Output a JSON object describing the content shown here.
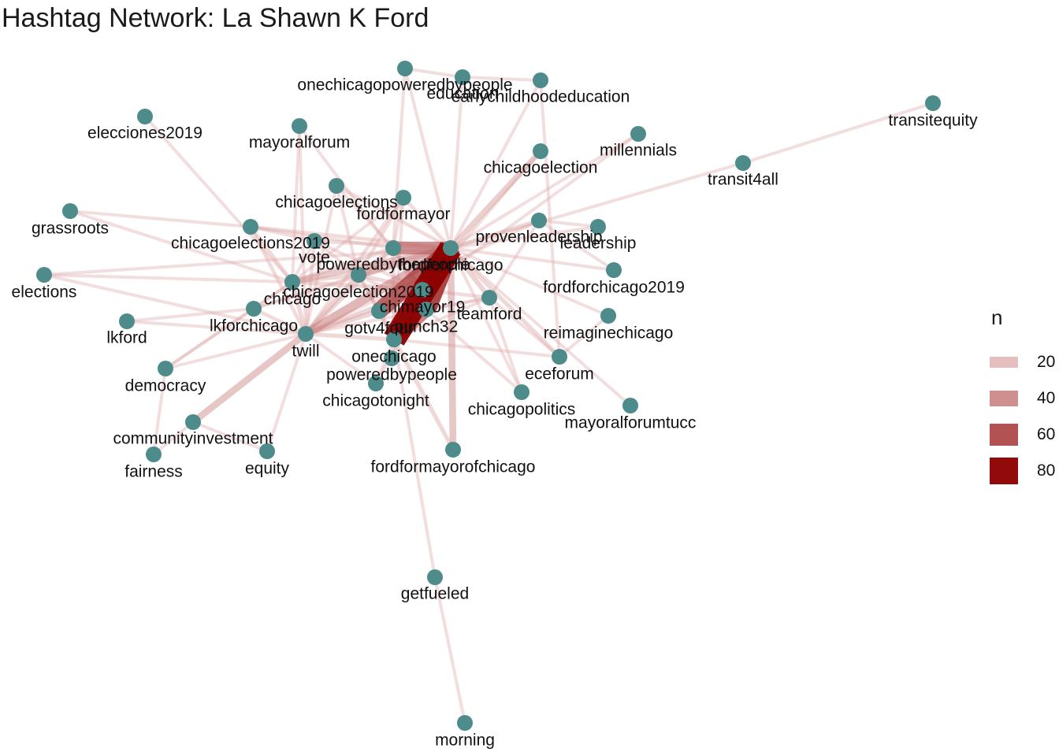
{
  "title": "Hashtag Network: La Shawn K Ford",
  "colors": {
    "node": "#4e8b8b",
    "edge": "#8b0000",
    "edge_light": "#e3b5b5"
  },
  "legend": {
    "title": "n",
    "items": [
      {
        "label": "20",
        "value": 20
      },
      {
        "label": "40",
        "value": 40
      },
      {
        "label": "60",
        "value": 60
      },
      {
        "label": "80",
        "value": 80
      }
    ]
  },
  "nodes": [
    {
      "id": "onechicagopoweredbypeople",
      "label": "onechicagopoweredbypeople"
    },
    {
      "id": "education",
      "label": "education"
    },
    {
      "id": "earlychildhoodeducation",
      "label": "earlychildhoodeducation"
    },
    {
      "id": "transitequity",
      "label": "transitequity"
    },
    {
      "id": "elecciones2019",
      "label": "elecciones2019"
    },
    {
      "id": "mayoralforum",
      "label": "mayoralforum"
    },
    {
      "id": "millennials",
      "label": "millennials"
    },
    {
      "id": "chicagoelection",
      "label": "chicagoelection"
    },
    {
      "id": "transit4all",
      "label": "transit4all"
    },
    {
      "id": "grassroots",
      "label": "grassroots"
    },
    {
      "id": "chicagoelections",
      "label": "chicagoelections"
    },
    {
      "id": "fordformayor",
      "label": "fordformayor"
    },
    {
      "id": "chicagoelections2019",
      "label": "chicagoelections2019"
    },
    {
      "id": "vote",
      "label": "vote"
    },
    {
      "id": "provenleadership",
      "label": "provenleadership"
    },
    {
      "id": "leadership",
      "label": "leadership"
    },
    {
      "id": "poweredbythepeople",
      "label": "poweredbythepeople"
    },
    {
      "id": "fordforchicago",
      "label": "fordforchicago"
    },
    {
      "id": "elections",
      "label": "elections"
    },
    {
      "id": "fordforchicago2019",
      "label": "fordforchicago2019"
    },
    {
      "id": "chicagoelection2019",
      "label": "chicagoelection2019"
    },
    {
      "id": "chicago",
      "label": "chicago"
    },
    {
      "id": "chimayor19",
      "label": "chimayor19"
    },
    {
      "id": "teamford",
      "label": "teamford"
    },
    {
      "id": "lkford",
      "label": "lkford"
    },
    {
      "id": "lkforchicago",
      "label": "lkforchicago"
    },
    {
      "id": "gotv4four",
      "label": "gotv4four"
    },
    {
      "id": "punch32",
      "label": "punch32"
    },
    {
      "id": "reimaginechicago",
      "label": "reimaginechicago"
    },
    {
      "id": "twill",
      "label": "twill"
    },
    {
      "id": "onechicago",
      "label": "onechicago"
    },
    {
      "id": "eceforum",
      "label": "eceforum"
    },
    {
      "id": "democracy",
      "label": "democracy"
    },
    {
      "id": "poweredbypeople",
      "label": "poweredbypeople"
    },
    {
      "id": "chicagotonight",
      "label": "chicagotonight"
    },
    {
      "id": "chicagopolitics",
      "label": "chicagopolitics"
    },
    {
      "id": "mayoralforumtucc",
      "label": "mayoralforumtucc"
    },
    {
      "id": "communityinvestment",
      "label": "communityinvestment"
    },
    {
      "id": "fairness",
      "label": "fairness"
    },
    {
      "id": "equity",
      "label": "equity"
    },
    {
      "id": "fordformayorofchicago",
      "label": "fordformayorofchicago"
    },
    {
      "id": "getfueled",
      "label": "getfueled"
    },
    {
      "id": "morning",
      "label": "morning"
    }
  ],
  "edges": [
    {
      "source": "fordforchicago",
      "target": "onechicago",
      "n": 85
    },
    {
      "source": "fordforchicago",
      "target": "chimayor19",
      "n": 75
    },
    {
      "source": "fordforchicago",
      "target": "punch32",
      "n": 70
    },
    {
      "source": "fordforchicago",
      "target": "gotv4four",
      "n": 60
    },
    {
      "source": "fordforchicago",
      "target": "poweredbythepeople",
      "n": 45
    },
    {
      "source": "chimayor19",
      "target": "onechicago",
      "n": 55
    },
    {
      "source": "punch32",
      "target": "onechicago",
      "n": 50
    },
    {
      "source": "fordforchicago",
      "target": "twill",
      "n": 30
    },
    {
      "source": "fordforchicago",
      "target": "chicagoelection2019",
      "n": 25
    },
    {
      "source": "fordforchicago",
      "target": "fordformayorofchicago",
      "n": 22
    },
    {
      "source": "fordforchicago",
      "target": "chicago",
      "n": 20
    },
    {
      "source": "fordforchicago",
      "target": "chicagoelection",
      "n": 18
    },
    {
      "source": "fordforchicago",
      "target": "teamford",
      "n": 15
    },
    {
      "source": "fordforchicago",
      "target": "eceforum",
      "n": 12
    },
    {
      "source": "fordforchicago",
      "target": "provenleadership",
      "n": 12
    },
    {
      "source": "fordforchicago",
      "target": "fordformayor",
      "n": 10
    },
    {
      "source": "fordforchicago",
      "target": "vote",
      "n": 10
    },
    {
      "source": "fordforchicago",
      "target": "chicagoelections",
      "n": 10
    },
    {
      "source": "fordforchicago",
      "target": "chicagoelections2019",
      "n": 10
    },
    {
      "source": "fordforchicago",
      "target": "leadership",
      "n": 8
    },
    {
      "source": "fordforchicago",
      "target": "fordforchicago2019",
      "n": 8
    },
    {
      "source": "fordforchicago",
      "target": "reimaginechicago",
      "n": 8
    },
    {
      "source": "fordforchicago",
      "target": "mayoralforumtucc",
      "n": 8
    },
    {
      "source": "fordforchicago",
      "target": "chicagopolitics",
      "n": 8
    },
    {
      "source": "fordforchicago",
      "target": "education",
      "n": 8
    },
    {
      "source": "fordforchicago",
      "target": "onechicagopoweredbypeople",
      "n": 8
    },
    {
      "source": "fordforchicago",
      "target": "earlychildhoodeducation",
      "n": 8
    },
    {
      "source": "fordforchicago",
      "target": "millennials",
      "n": 8
    },
    {
      "source": "fordforchicago",
      "target": "transit4all",
      "n": 8
    },
    {
      "source": "fordforchicago",
      "target": "lkforchicago",
      "n": 8
    },
    {
      "source": "fordforchicago",
      "target": "elections",
      "n": 8
    },
    {
      "source": "fordforchicago",
      "target": "chicagotonight",
      "n": 8
    },
    {
      "source": "transit4all",
      "target": "transitequity",
      "n": 8
    },
    {
      "source": "twill",
      "target": "chicagoelection2019",
      "n": 15
    },
    {
      "source": "twill",
      "target": "communityinvestment",
      "n": 22
    },
    {
      "source": "twill",
      "target": "chicago",
      "n": 12
    },
    {
      "source": "twill",
      "target": "lkforchicago",
      "n": 10
    },
    {
      "source": "twill",
      "target": "chicagoelections2019",
      "n": 10
    },
    {
      "source": "twill",
      "target": "vote",
      "n": 10
    },
    {
      "source": "twill",
      "target": "poweredbythepeople",
      "n": 12
    },
    {
      "source": "twill",
      "target": "gotv4four",
      "n": 15
    },
    {
      "source": "twill",
      "target": "chimayor19",
      "n": 15
    },
    {
      "source": "twill",
      "target": "onechicago",
      "n": 12
    },
    {
      "source": "twill",
      "target": "fordformayor",
      "n": 10
    },
    {
      "source": "twill",
      "target": "democracy",
      "n": 8
    },
    {
      "source": "twill",
      "target": "lkford",
      "n": 8
    },
    {
      "source": "twill",
      "target": "equity",
      "n": 8
    },
    {
      "source": "twill",
      "target": "elections",
      "n": 8
    },
    {
      "source": "twill",
      "target": "teamford",
      "n": 8
    },
    {
      "source": "twill",
      "target": "provenleadership",
      "n": 8
    },
    {
      "source": "twill",
      "target": "mayoralforum",
      "n": 8
    },
    {
      "source": "twill",
      "target": "chicagoelections",
      "n": 8
    },
    {
      "source": "twill",
      "target": "chicagotonight",
      "n": 8
    },
    {
      "source": "chicago",
      "target": "grassroots",
      "n": 8
    },
    {
      "source": "chicago",
      "target": "elections",
      "n": 8
    },
    {
      "source": "chicago",
      "target": "elecciones2019",
      "n": 8
    },
    {
      "source": "chicago",
      "target": "democracy",
      "n": 8
    },
    {
      "source": "chicago",
      "target": "lkforchicago",
      "n": 8
    },
    {
      "source": "chicago",
      "target": "chicagoelection2019",
      "n": 12
    },
    {
      "source": "chicago",
      "target": "poweredbythepeople",
      "n": 12
    },
    {
      "source": "chicago",
      "target": "chimayor19",
      "n": 12
    },
    {
      "source": "chicago",
      "target": "fordformayor",
      "n": 8
    },
    {
      "source": "chicago",
      "target": "mayoralforum",
      "n": 8
    },
    {
      "source": "chicago",
      "target": "chicagoelections2019",
      "n": 10
    },
    {
      "source": "chicago",
      "target": "vote",
      "n": 8
    },
    {
      "source": "chicagoelection2019",
      "target": "chimayor19",
      "n": 12
    },
    {
      "source": "chicagoelection2019",
      "target": "poweredbythepeople",
      "n": 12
    },
    {
      "source": "chicagoelection2019",
      "target": "gotv4four",
      "n": 10
    },
    {
      "source": "chicagoelection2019",
      "target": "punch32",
      "n": 10
    },
    {
      "source": "chicagoelection2019",
      "target": "fordformayor",
      "n": 10
    },
    {
      "source": "chicagoelection2019",
      "target": "chicagoelections",
      "n": 8
    },
    {
      "source": "chicagoelection2019",
      "target": "vote",
      "n": 8
    },
    {
      "source": "chicagoelection2019",
      "target": "onechicago",
      "n": 10
    },
    {
      "source": "poweredbythepeople",
      "target": "onechicago",
      "n": 12
    },
    {
      "source": "poweredbythepeople",
      "target": "punch32",
      "n": 10
    },
    {
      "source": "poweredbythepeople",
      "target": "chimayor19",
      "n": 12
    },
    {
      "source": "poweredbythepeople",
      "target": "fordformayor",
      "n": 8
    },
    {
      "source": "gotv4four",
      "target": "onechicago",
      "n": 12
    },
    {
      "source": "gotv4four",
      "target": "punch32",
      "n": 12
    },
    {
      "source": "gotv4four",
      "target": "chimayor19",
      "n": 12
    },
    {
      "source": "onechicago",
      "target": "getfueled",
      "n": 8
    },
    {
      "source": "getfueled",
      "target": "morning",
      "n": 8
    },
    {
      "source": "onechicago",
      "target": "poweredbypeople",
      "n": 8
    },
    {
      "source": "onechicago",
      "target": "fordformayorofchicago",
      "n": 12
    },
    {
      "source": "onechicago",
      "target": "eceforum",
      "n": 8
    },
    {
      "source": "onechicago",
      "target": "teamford",
      "n": 8
    },
    {
      "source": "chimayor19",
      "target": "teamford",
      "n": 10
    },
    {
      "source": "punch32",
      "target": "teamford",
      "n": 8
    },
    {
      "source": "teamford",
      "target": "chicagopolitics",
      "n": 8
    },
    {
      "source": "teamford",
      "target": "eceforum",
      "n": 8
    },
    {
      "source": "teamford",
      "target": "provenleadership",
      "n": 8
    },
    {
      "source": "provenleadership",
      "target": "leadership",
      "n": 8
    },
    {
      "source": "provenleadership",
      "target": "fordforchicago2019",
      "n": 8
    },
    {
      "source": "eceforum",
      "target": "earlychildhoodeducation",
      "n": 8
    },
    {
      "source": "eceforum",
      "target": "reimaginechicago",
      "n": 8
    },
    {
      "source": "education",
      "target": "onechicagopoweredbypeople",
      "n": 8
    },
    {
      "source": "education",
      "target": "earlychildhoodeducation",
      "n": 8
    },
    {
      "source": "democracy",
      "target": "fairness",
      "n": 8
    },
    {
      "source": "democracy",
      "target": "lkforchicago",
      "n": 8
    },
    {
      "source": "communityinvestment",
      "target": "fairness",
      "n": 8
    },
    {
      "source": "communityinvestment",
      "target": "equity",
      "n": 8
    },
    {
      "source": "lkford",
      "target": "lkforchicago",
      "n": 8
    },
    {
      "source": "lkforchicago",
      "target": "chicagoelection2019",
      "n": 8
    },
    {
      "source": "vote",
      "target": "chicagoelections2019",
      "n": 8
    },
    {
      "source": "vote",
      "target": "chimayor19",
      "n": 8
    },
    {
      "source": "chicagoelections2019",
      "target": "grassroots",
      "n": 8
    },
    {
      "source": "chicagoelections2019",
      "target": "poweredbythepeople",
      "n": 8
    },
    {
      "source": "chicagoelections",
      "target": "poweredbythepeople",
      "n": 8
    },
    {
      "source": "mayoralforum",
      "target": "chimayor19",
      "n": 8
    },
    {
      "source": "fordformayor",
      "target": "onechicago",
      "n": 8
    },
    {
      "source": "chicagotonight",
      "target": "onechicago",
      "n": 8
    },
    {
      "source": "chicagoelection",
      "target": "chimayor19",
      "n": 8
    },
    {
      "source": "millennials",
      "target": "chimayor19",
      "n": 8
    },
    {
      "source": "onechicagopoweredbypeople",
      "target": "poweredbythepeople",
      "n": 8
    },
    {
      "source": "chicagopolitics",
      "target": "punch32",
      "n": 8
    }
  ]
}
